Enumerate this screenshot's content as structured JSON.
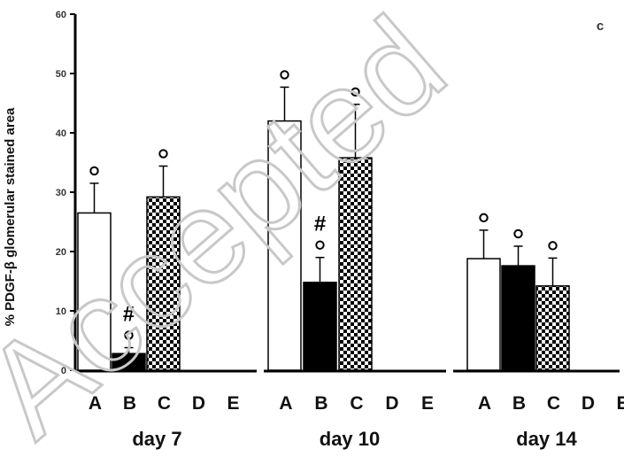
{
  "chart_data": {
    "type": "bar",
    "panel_label": "c",
    "ylabel": "% PDGF-β glomerular stained area",
    "ylim": [
      0,
      60
    ],
    "yticks": [
      0,
      10,
      20,
      30,
      40,
      50,
      60
    ],
    "categories": [
      "A",
      "B",
      "C",
      "D",
      "E"
    ],
    "groups": [
      {
        "label": "day 7",
        "bars": [
          {
            "category": "A",
            "value": 26.5,
            "error": 5,
            "pattern": "white",
            "markers": [
              "o"
            ]
          },
          {
            "category": "B",
            "value": 2.8,
            "error": 1,
            "pattern": "black",
            "markers": [
              "o",
              "#"
            ]
          },
          {
            "category": "C",
            "value": 29.2,
            "error": 5.2,
            "pattern": "checker",
            "markers": [
              "o"
            ]
          }
        ]
      },
      {
        "label": "day 10",
        "bars": [
          {
            "category": "A",
            "value": 42,
            "error": 5.7,
            "pattern": "white",
            "markers": [
              "o"
            ]
          },
          {
            "category": "B",
            "value": 14.8,
            "error": 4.2,
            "pattern": "black",
            "markers": [
              "o",
              "#"
            ]
          },
          {
            "category": "C",
            "value": 35.8,
            "error": 9,
            "pattern": "checker",
            "markers": [
              "o"
            ]
          }
        ]
      },
      {
        "label": "day 14",
        "bars": [
          {
            "category": "A",
            "value": 18.8,
            "error": 4.8,
            "pattern": "white",
            "markers": [
              "o"
            ]
          },
          {
            "category": "B",
            "value": 17.6,
            "error": 3.3,
            "pattern": "black",
            "markers": [
              "o"
            ]
          },
          {
            "category": "C",
            "value": 14.2,
            "error": 4.7,
            "pattern": "checker",
            "markers": [
              "o"
            ]
          }
        ]
      }
    ],
    "watermark": "Accepted"
  }
}
